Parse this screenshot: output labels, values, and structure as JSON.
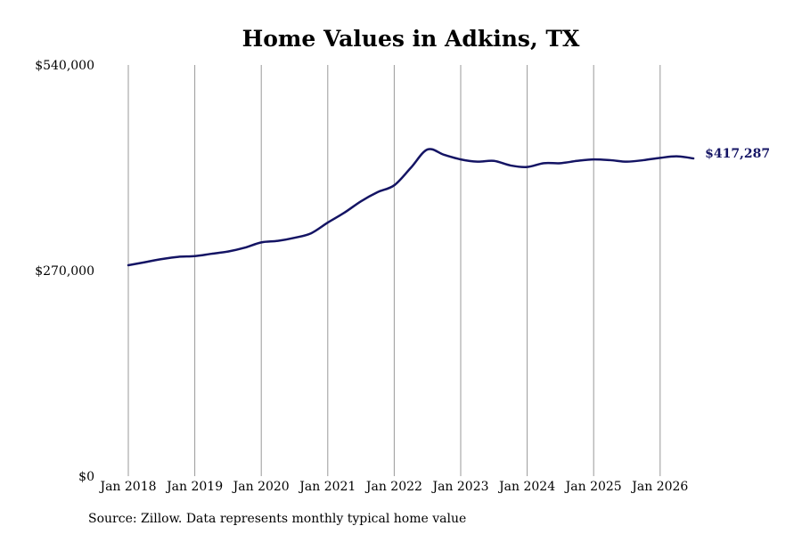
{
  "chart_data": {
    "type": "line",
    "title": "Home Values in Adkins, TX",
    "xlabel": "",
    "ylabel": "",
    "ylim": [
      0,
      540000
    ],
    "y_ticks": [
      {
        "value": 0,
        "label": "$0"
      },
      {
        "value": 270000,
        "label": "$270,000"
      },
      {
        "value": 540000,
        "label": "$540,000"
      }
    ],
    "x_ticks": [
      {
        "value": "2018-01",
        "label": "Jan 2018"
      },
      {
        "value": "2019-01",
        "label": "Jan 2019"
      },
      {
        "value": "2020-01",
        "label": "Jan 2020"
      },
      {
        "value": "2021-01",
        "label": "Jan 2021"
      },
      {
        "value": "2022-01",
        "label": "Jan 2022"
      },
      {
        "value": "2023-01",
        "label": "Jan 2023"
      },
      {
        "value": "2024-01",
        "label": "Jan 2024"
      },
      {
        "value": "2025-01",
        "label": "Jan 2025"
      },
      {
        "value": "2026-01",
        "label": "Jan 2026"
      }
    ],
    "grid": {
      "vertical": true,
      "horizontal": false
    },
    "line_color": "#141464",
    "grid_color": "#999999",
    "end_label": "$417,287",
    "series": [
      {
        "x": [
          "2018-01",
          "2018-04",
          "2018-07",
          "2018-10",
          "2019-01",
          "2019-04",
          "2019-07",
          "2019-10",
          "2020-01",
          "2020-04",
          "2020-07",
          "2020-10",
          "2021-01",
          "2021-04",
          "2021-07",
          "2021-10",
          "2022-01",
          "2022-04",
          "2022-07",
          "2022-10",
          "2023-01",
          "2023-04",
          "2023-07",
          "2023-10",
          "2024-01",
          "2024-04",
          "2024-07",
          "2024-10",
          "2025-01",
          "2025-04",
          "2025-07",
          "2025-10",
          "2026-01",
          "2026-04",
          "2026-07"
        ],
        "values": [
          277000,
          281000,
          285000,
          288000,
          289000,
          292000,
          295000,
          300000,
          307000,
          309000,
          313000,
          319000,
          333000,
          346000,
          361000,
          373000,
          382000,
          405000,
          429000,
          422000,
          416000,
          413000,
          414000,
          408000,
          406000,
          411000,
          411000,
          414000,
          416000,
          415000,
          413000,
          415000,
          418000,
          420000,
          417287
        ]
      }
    ]
  },
  "source_note": "Source: Zillow. Data represents monthly typical home value"
}
